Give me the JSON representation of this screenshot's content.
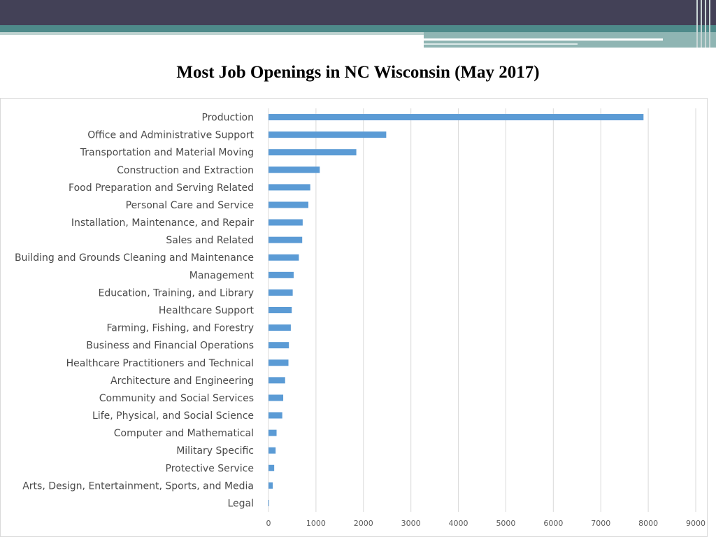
{
  "chart_data": {
    "type": "bar",
    "orientation": "horizontal",
    "title": "Most Job Openings in NC Wisconsin (May 2017)",
    "categories": [
      "Production",
      "Office and Administrative Support",
      "Transportation and Material Moving",
      "Construction and Extraction",
      "Food Preparation and Serving Related",
      "Personal Care and Service",
      "Installation, Maintenance, and Repair",
      "Sales and Related",
      "Building and Grounds Cleaning and Maintenance",
      "Management",
      "Education, Training, and Library",
      "Healthcare Support",
      "Farming, Fishing, and Forestry",
      "Business and Financial Operations",
      "Healthcare Practitioners and Technical",
      "Architecture and Engineering",
      "Community and Social Services",
      "Life, Physical, and Social Science",
      "Computer and Mathematical",
      "Military Specific",
      "Protective Service",
      "Arts, Design, Entertainment, Sports, and Media",
      "Legal"
    ],
    "values": [
      7900,
      2480,
      1850,
      1080,
      880,
      840,
      720,
      710,
      640,
      530,
      510,
      490,
      470,
      430,
      420,
      350,
      310,
      290,
      170,
      150,
      120,
      90,
      10
    ],
    "xlim": [
      0,
      9000
    ],
    "xticks": [
      "0",
      "1000",
      "2000",
      "3000",
      "4000",
      "5000",
      "6000",
      "7000",
      "8000",
      "9000"
    ],
    "grid": "vertical",
    "bar_color": "#5b9bd5"
  }
}
